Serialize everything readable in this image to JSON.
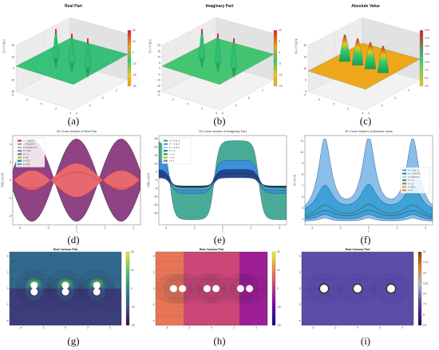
{
  "figure": {
    "panel_labels": [
      "(a)",
      "(b)",
      "(c)",
      "(d)",
      "(e)",
      "(f)",
      "(g)",
      "(h)",
      "(i)"
    ]
  },
  "chart_data": [
    {
      "panel": "a",
      "type": "surface3d",
      "title": "Real Part",
      "zlabel": "Ω_L^(+)(ξ,τ)",
      "axis_ticks": {
        "x": [
          "-4",
          "-2",
          "0",
          "2",
          "4"
        ],
        "y": [
          "-4",
          "-2",
          "0",
          "2",
          "4"
        ],
        "z": [
          "-20",
          "-10",
          "0",
          "10",
          "20"
        ]
      },
      "colorbar": {
        "ticks": [
          "20",
          "10",
          "0",
          "-10",
          "-20",
          "-30"
        ],
        "colormap": "green-yellow-red"
      },
      "peaks_x": [
        -2.5,
        0,
        2.5
      ]
    },
    {
      "panel": "b",
      "type": "surface3d",
      "title": "Imaginary Part",
      "zlabel": "Ω_L^(+)(ξ,τ)",
      "axis_ticks": {
        "x": [
          "-4",
          "-2",
          "0",
          "2",
          "4"
        ],
        "y": [
          "-4",
          "-2",
          "0",
          "2",
          "4"
        ],
        "z": [
          "-20",
          "-15",
          "-10",
          "-5",
          "0",
          "5",
          "10",
          "15",
          "20"
        ]
      },
      "colorbar": {
        "ticks": [
          "10",
          "5",
          "0",
          "-5",
          "-10",
          "-15"
        ],
        "colormap": "green-yellow-red"
      },
      "peaks_x": [
        -2.5,
        0,
        2.5
      ]
    },
    {
      "panel": "c",
      "type": "surface3d",
      "title": "Absolute Value",
      "zlabel": "|Ω_L^(+)(ξ,τ)|",
      "axis_ticks": {
        "x": [
          "-4",
          "-2",
          "0",
          "2",
          "4"
        ],
        "y": [
          "-4",
          "-2",
          "0",
          "2",
          "4"
        ],
        "z": [
          "0",
          "5",
          "10",
          "15",
          "20"
        ]
      },
      "colorbar": {
        "ticks": [
          "20.0",
          "17.5",
          "15.0",
          "12.5",
          "10.0",
          "7.5",
          "5.0",
          "2.5"
        ],
        "colormap": "green-yellow-red"
      },
      "peaks_x": [
        -3,
        -1,
        1,
        3
      ]
    },
    {
      "panel": "d",
      "type": "line",
      "title": "2D Cross Section of Real Part",
      "xlabel": "ξ",
      "ylabel": "Re[Ω_L(ξ,τ)]",
      "xlim": [
        -4.5,
        4.5
      ],
      "ylim": [
        -5,
        5
      ],
      "xticks": [
        -4,
        -2,
        0,
        2,
        4
      ],
      "yticks": [
        -4,
        -2,
        0,
        2,
        4
      ],
      "legend": [
        "t = -3 to -1",
        "t = 0 to 0.5",
        "t = 0.5 to 2.5",
        "t = -2.5",
        "t = -1",
        "t = 0",
        "t = 0.5",
        "t = 2.5"
      ],
      "envelope_amplitude": 4.6,
      "inner_amplitude": 1.5,
      "period": 6.283
    },
    {
      "panel": "e",
      "type": "line",
      "title": "2D Cross Section of Imaginary Part",
      "xlabel": "ξ",
      "ylabel": "Im[Ω_L(ξ,τ)]",
      "xlim": [
        -4.5,
        4.5
      ],
      "ylim": [
        -27,
        27
      ],
      "xticks": [
        -4,
        -2,
        0,
        2,
        4
      ],
      "yticks": [
        -20,
        -15,
        -10,
        -5,
        0,
        5,
        10,
        15,
        20,
        25
      ],
      "legend": [
        "t = -2 to -1",
        "t = -1 to 0",
        "t = -1 to 2",
        "t = -1",
        "t = -2",
        "t = 2",
        "t = 1"
      ],
      "envelope_amplitude": 24,
      "inner_amplitude": 10,
      "period": 6.283
    },
    {
      "panel": "f",
      "type": "line",
      "title": "2D Cross Section of Absolute Value",
      "xlabel": "ξ",
      "ylabel": "|Ω_L(ξ,τ)|",
      "xlim": [
        -4.5,
        4.5
      ],
      "ylim": [
        3.5,
        11.5
      ],
      "xticks": [
        -4,
        -2,
        0,
        2,
        4
      ],
      "yticks": [
        4,
        5,
        6,
        7,
        8,
        9,
        10,
        11
      ],
      "legend": [
        "t = -2 to -1",
        "t = -1 to 0.5",
        "t = 0.5 to 1",
        "t = -1",
        "t = -2",
        "t = 0.5",
        "t = 2"
      ],
      "peaks_x": [
        -3.1,
        0,
        3.1
      ]
    },
    {
      "panel": "g",
      "type": "contour",
      "title": "Real Contour Plot",
      "xticks": [
        "-4",
        "-2",
        "0",
        "2",
        "4"
      ],
      "yticks": [
        "-4",
        "-2",
        "0",
        "2",
        "4"
      ],
      "colorbar": [
        "-20",
        "-10",
        "0",
        "10",
        "20"
      ],
      "colormap": "viridis",
      "singularities": [
        [
          -2.8,
          0.4
        ],
        [
          -2.8,
          -0.4
        ],
        [
          0,
          0.4
        ],
        [
          0,
          -0.4
        ],
        [
          2.8,
          0.4
        ],
        [
          2.8,
          -0.4
        ]
      ]
    },
    {
      "panel": "h",
      "type": "contour",
      "title": "Real Contour Plot",
      "xticks": [
        "-4",
        "-2",
        "0",
        "2",
        "4"
      ],
      "yticks": [
        "-4",
        "-2",
        "0",
        "2",
        "4"
      ],
      "colorbar": [
        "-20",
        "-10",
        "0",
        "10",
        "20"
      ],
      "colormap": "plasma",
      "singularities": [
        [
          -3.4,
          0
        ],
        [
          -2.6,
          0
        ],
        [
          -0.4,
          0
        ],
        [
          0.4,
          0
        ],
        [
          2.6,
          0
        ],
        [
          3.4,
          0
        ]
      ]
    },
    {
      "panel": "i",
      "type": "contour",
      "title": "Real Contour Plot",
      "xticks": [
        "-4",
        "-2",
        "0",
        "2",
        "4"
      ],
      "yticks": [
        "-4",
        "-2",
        "0",
        "2",
        "4"
      ],
      "colorbar": [
        "20",
        "17.5",
        "15",
        "12.5",
        "10",
        "7.5",
        "5",
        "2.5"
      ],
      "colormap": "purple-orange",
      "singularities": [
        [
          -3,
          0
        ],
        [
          0,
          0
        ],
        [
          3,
          0
        ]
      ]
    }
  ]
}
